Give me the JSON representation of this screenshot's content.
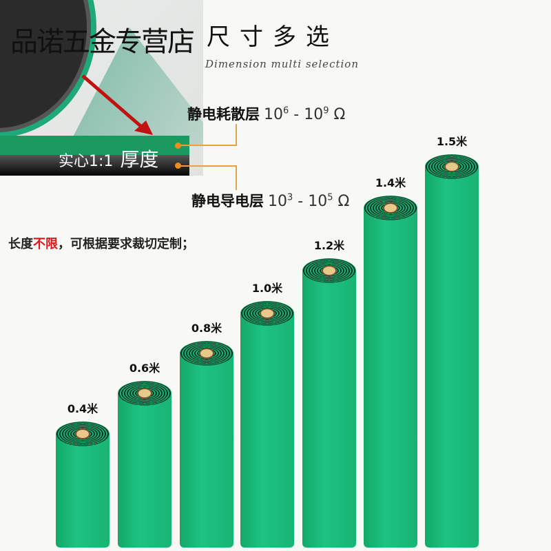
{
  "header": {
    "shop_name": "品诺五金专营店",
    "title": "尺寸多选",
    "subtitle": "Dimension multi selection"
  },
  "diagram": {
    "thickness_label": "实心1:1",
    "thickness_word": "厚度",
    "layers": [
      {
        "name": "静电耗散层",
        "range_a": "10",
        "exp_a": "6",
        "range_b": "10",
        "exp_b": "9",
        "unit": "Ω"
      },
      {
        "name": "静电导电层",
        "range_a": "10",
        "exp_a": "3",
        "range_b": "10",
        "exp_b": "5",
        "unit": "Ω"
      }
    ]
  },
  "note": {
    "prefix": "长度",
    "highlight": "不限",
    "suffix": "，可根据要求裁切定制；"
  },
  "colors": {
    "green": "#1ec282",
    "highlight": "#e0141a",
    "callout": "#f08c1a"
  },
  "rolls": [
    {
      "label": "0.4米",
      "width_m": 0.4
    },
    {
      "label": "0.6米",
      "width_m": 0.6
    },
    {
      "label": "0.8米",
      "width_m": 0.8
    },
    {
      "label": "1.0米",
      "width_m": 1.0
    },
    {
      "label": "1.2米",
      "width_m": 1.2
    },
    {
      "label": "1.4米",
      "width_m": 1.4
    },
    {
      "label": "1.5米",
      "width_m": 1.5
    }
  ]
}
